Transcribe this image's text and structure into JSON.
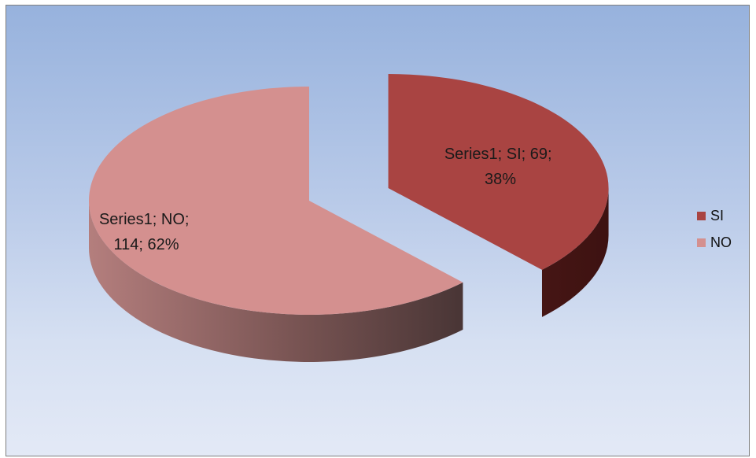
{
  "chart_data": {
    "type": "pie",
    "series": [
      {
        "name": "Series1",
        "values": [
          69,
          114
        ]
      }
    ],
    "categories": [
      "SI",
      "NO"
    ],
    "percentages": [
      "38%",
      "62%"
    ],
    "labels": [
      {
        "line1": "Series1; SI; 69;",
        "line2": "38%"
      },
      {
        "line1": "Series1; NO;",
        "line2": "114; 62%"
      }
    ],
    "legend_position": "right",
    "three_d": true,
    "exploded": true
  },
  "legend": {
    "items": [
      {
        "label": "SI",
        "color": "#a94442"
      },
      {
        "label": "NO",
        "color": "#d4908f"
      }
    ]
  },
  "colors": {
    "si_top": "#a94442",
    "no_top": "#d4908f"
  }
}
